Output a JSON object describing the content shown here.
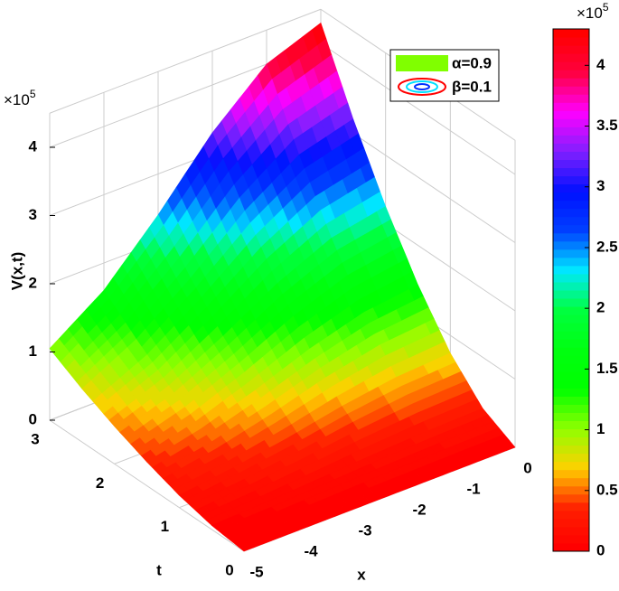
{
  "chart_data": {
    "type": "surface",
    "zlabel": "V(x,t)",
    "xlabel": "x",
    "tlabel": "t",
    "z_multiplier": {
      "base": "×10",
      "exponent": "5"
    },
    "colorbar_multiplier": {
      "base": "×10",
      "exponent": "5"
    },
    "x": [
      -5,
      -4,
      -3,
      -2,
      -1,
      0
    ],
    "t": [
      0,
      0.5,
      1,
      1.5,
      2,
      2.5,
      3
    ],
    "z": [
      [
        0,
        0,
        0,
        0,
        0,
        0
      ],
      [
        0.06,
        0.09,
        0.14,
        0.19,
        0.23,
        0.25
      ],
      [
        0.18,
        0.28,
        0.41,
        0.57,
        0.69,
        0.74
      ],
      [
        0.35,
        0.53,
        0.79,
        1.09,
        1.32,
        1.42
      ],
      [
        0.55,
        0.84,
        1.26,
        1.73,
        2.09,
        2.25
      ],
      [
        0.78,
        1.2,
        1.79,
        2.47,
        2.99,
        3.21
      ],
      [
        1.05,
        1.6,
        2.4,
        3.3,
        4.0,
        4.3
      ]
    ],
    "xlim": [
      -5,
      0
    ],
    "tlim": [
      0,
      3
    ],
    "zlim": [
      0,
      4.5
    ],
    "xticks": [
      -5,
      -4,
      -3,
      -2,
      -1,
      0
    ],
    "tticks": [
      0,
      1,
      2,
      3
    ],
    "zticks": [
      0,
      1,
      2,
      3,
      4
    ],
    "clim": [
      0,
      4.3
    ],
    "cticks": [
      0,
      0.5,
      1,
      1.5,
      2,
      2.5,
      3,
      3.5,
      4
    ],
    "colormap": [
      "#ff0000",
      "#ff2000",
      "#ffd000",
      "#90ff00",
      "#00ff00",
      "#00ff10",
      "#00ff40",
      "#00e8ff",
      "#0040ff",
      "#0010ff",
      "#8020ff",
      "#ff00ff",
      "#ff0040",
      "#ff0000"
    ],
    "grid": true,
    "legend": [
      {
        "label": "α=0.9",
        "color": "#80ff00"
      },
      {
        "label": "β=0.1",
        "color": "#ff0000"
      }
    ]
  }
}
